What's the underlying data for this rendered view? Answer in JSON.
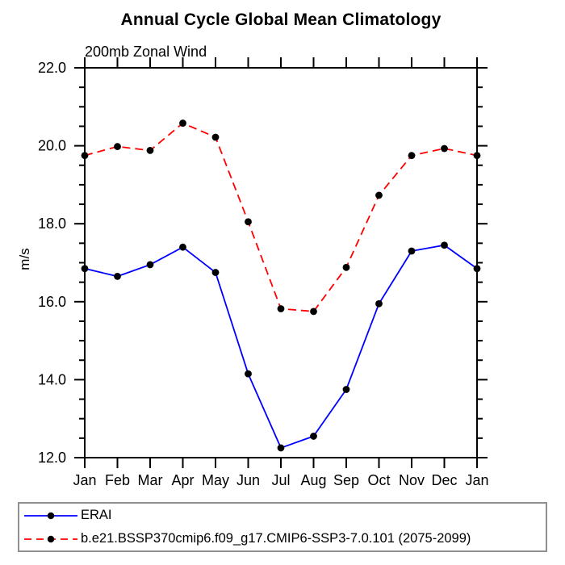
{
  "chart_data": {
    "type": "line",
    "title": "Annual Cycle Global Mean Climatology",
    "subtitle": "200mb Zonal Wind",
    "ylabel": "m/s",
    "xlabel": "",
    "categories": [
      "Jan",
      "Feb",
      "Mar",
      "Apr",
      "May",
      "Jun",
      "Jul",
      "Aug",
      "Sep",
      "Oct",
      "Nov",
      "Dec",
      "Jan"
    ],
    "series": [
      {
        "name": "ERAI",
        "line_color": "#0000ff",
        "line_style": "solid",
        "marker": "filled-circle",
        "marker_color": "#000000",
        "values": [
          16.85,
          16.65,
          16.95,
          17.4,
          16.75,
          14.15,
          12.25,
          12.55,
          13.75,
          15.95,
          17.3,
          17.45,
          16.85
        ]
      },
      {
        "name": "b.e21.BSSP370cmip6.f09_g17.CMIP6-SSP3-7.0.101 (2075-2099)",
        "line_color": "#ff0000",
        "line_style": "dashed",
        "marker": "filled-circle",
        "marker_color": "#000000",
        "values": [
          19.75,
          19.98,
          19.88,
          20.58,
          20.22,
          18.05,
          15.82,
          15.75,
          16.88,
          18.73,
          19.75,
          19.93,
          19.75
        ]
      }
    ],
    "ylim": [
      12.0,
      22.0
    ],
    "ytick_major": [
      12,
      14,
      16,
      18,
      20,
      22
    ],
    "ytick_labels": [
      "12.0",
      "14.0",
      "16.0",
      "18.0",
      "20.0",
      "22.0"
    ],
    "ytick_minor_step": 0.5,
    "grid": "off",
    "legend_position": "bottom-left-box",
    "axis_color": "#000000",
    "legend_border_color": "#909090"
  }
}
